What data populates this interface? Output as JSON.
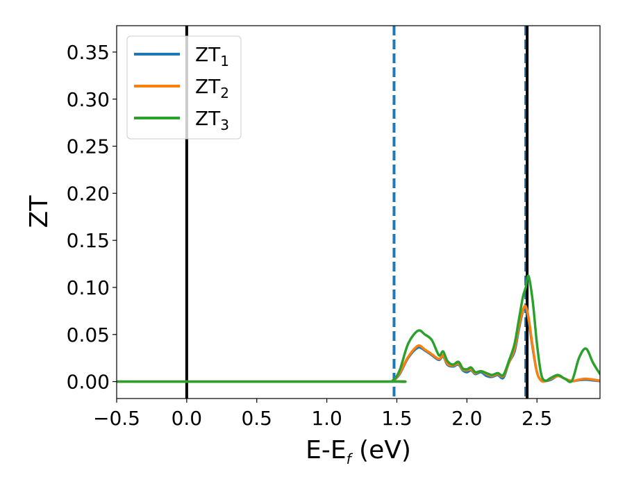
{
  "chart_data": {
    "type": "line",
    "xlabel": {
      "main": "E-E",
      "sub": "f",
      "tail": " (eV)"
    },
    "ylabel": "ZT",
    "xlim": [
      -0.5,
      2.95
    ],
    "ylim": [
      -0.018,
      0.378
    ],
    "xticks": [
      -0.5,
      0.0,
      0.5,
      1.0,
      1.5,
      2.0,
      2.5
    ],
    "xtick_labels": [
      "−0.5",
      "0.0",
      "0.5",
      "1.0",
      "1.5",
      "2.0",
      "2.5"
    ],
    "yticks": [
      0.0,
      0.05,
      0.1,
      0.15,
      0.2,
      0.25,
      0.3,
      0.35
    ],
    "ytick_labels": [
      "0.00",
      "0.05",
      "0.10",
      "0.15",
      "0.20",
      "0.25",
      "0.30",
      "0.35"
    ],
    "legend_position": "top-left",
    "vlines": [
      {
        "x": 0.0,
        "style": "solid",
        "color": "#000000"
      },
      {
        "x": 1.48,
        "style": "dashed",
        "color": "#1f77b4"
      },
      {
        "x": 2.42,
        "style": "dashed",
        "color": "#1f77b4"
      },
      {
        "x": 2.43,
        "style": "solid",
        "color": "#000000"
      }
    ],
    "series": [
      {
        "name": "ZT",
        "name_sub": "1",
        "color": "#1f77b4",
        "x": [
          -0.5,
          1.4,
          1.47,
          1.52,
          1.58,
          1.65,
          1.7,
          1.75,
          1.8,
          1.83,
          1.86,
          1.9,
          1.94,
          1.97,
          2.0,
          2.03,
          2.06,
          2.1,
          2.14,
          2.18,
          2.22,
          2.26,
          2.3,
          2.34,
          2.37,
          2.4,
          2.42,
          2.44,
          2.47,
          2.5,
          2.53,
          2.56,
          2.6,
          2.65,
          2.7,
          2.75,
          2.8,
          2.85,
          2.95
        ],
        "y": [
          0,
          0,
          0.001,
          0.008,
          0.025,
          0.036,
          0.033,
          0.028,
          0.023,
          0.027,
          0.018,
          0.016,
          0.018,
          0.012,
          0.01,
          0.012,
          0.008,
          0.01,
          0.006,
          0.005,
          0.007,
          0.004,
          0.02,
          0.032,
          0.055,
          0.075,
          0.078,
          0.065,
          0.035,
          0.01,
          0.001,
          0.0005,
          0.002,
          0.006,
          0.003,
          0.0005,
          0.0015,
          0.002,
          0.0005
        ]
      },
      {
        "name": "ZT",
        "name_sub": "2",
        "color": "#ff7f0e",
        "x": [
          -0.5,
          1.4,
          1.47,
          1.52,
          1.58,
          1.65,
          1.7,
          1.75,
          1.8,
          1.83,
          1.86,
          1.9,
          1.94,
          1.97,
          2.0,
          2.03,
          2.06,
          2.1,
          2.14,
          2.18,
          2.22,
          2.26,
          2.3,
          2.34,
          2.37,
          2.4,
          2.42,
          2.44,
          2.47,
          2.5,
          2.53,
          2.56,
          2.6,
          2.65,
          2.7,
          2.75,
          2.8,
          2.85,
          2.95
        ],
        "y": [
          0,
          0,
          0.001,
          0.009,
          0.026,
          0.038,
          0.034,
          0.029,
          0.024,
          0.028,
          0.019,
          0.017,
          0.019,
          0.013,
          0.012,
          0.013,
          0.009,
          0.011,
          0.008,
          0.006,
          0.008,
          0.006,
          0.02,
          0.035,
          0.058,
          0.076,
          0.08,
          0.068,
          0.037,
          0.01,
          0.001,
          0.0005,
          0.003,
          0.006,
          0.003,
          0.0005,
          0.002,
          0.003,
          0.001
        ]
      },
      {
        "name": "ZT",
        "name_sub": "3",
        "color": "#2ca02c",
        "x": [
          -0.5,
          1.4,
          1.47,
          1.52,
          1.58,
          1.65,
          1.7,
          1.75,
          1.8,
          1.83,
          1.86,
          1.9,
          1.94,
          1.97,
          2.0,
          2.03,
          2.06,
          2.1,
          2.14,
          2.18,
          2.22,
          2.26,
          2.3,
          2.34,
          2.37,
          2.4,
          2.42,
          2.44,
          2.47,
          2.5,
          2.53,
          2.56,
          2.6,
          2.65,
          2.7,
          2.75,
          2.8,
          2.85,
          2.9,
          2.95
        ],
        "y": [
          0,
          0,
          0.001,
          0.012,
          0.04,
          0.054,
          0.05,
          0.044,
          0.028,
          0.032,
          0.022,
          0.018,
          0.021,
          0.014,
          0.013,
          0.015,
          0.01,
          0.011,
          0.009,
          0.007,
          0.009,
          0.007,
          0.022,
          0.04,
          0.065,
          0.09,
          0.1,
          0.112,
          0.085,
          0.04,
          0.008,
          0.001,
          0.004,
          0.007,
          0.003,
          0.001,
          0.025,
          0.035,
          0.02,
          0.008
        ]
      }
    ]
  }
}
